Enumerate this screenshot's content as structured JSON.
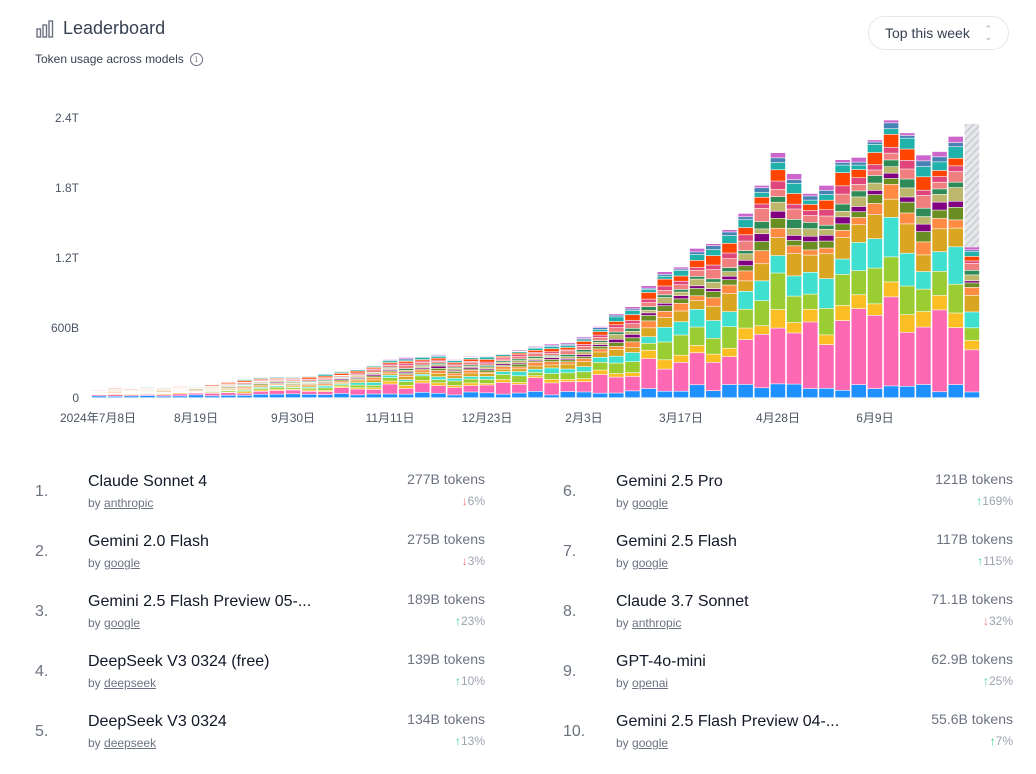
{
  "header": {
    "title": "Leaderboard",
    "subtitle": "Token usage across models",
    "period_select": "Top this week"
  },
  "chart_data": {
    "type": "bar",
    "stacked": true,
    "y_ticks": [
      "0",
      "600B",
      "1.2T",
      "1.8T",
      "2.4T"
    ],
    "y_tick_values": [
      0,
      600,
      1200,
      1800,
      2400
    ],
    "y_unit": "B tokens",
    "ylim": [
      0,
      2400
    ],
    "x_ticks": [
      {
        "label": "2024年7月8日",
        "index": 0
      },
      {
        "label": "8月19日",
        "index": 6
      },
      {
        "label": "9月30日",
        "index": 12
      },
      {
        "label": "11月11日",
        "index": 18
      },
      {
        "label": "12月23日",
        "index": 24
      },
      {
        "label": "2月3日",
        "index": 30
      },
      {
        "label": "3月17日",
        "index": 36
      },
      {
        "label": "4月28日",
        "index": 42
      },
      {
        "label": "6月9日",
        "index": 48
      }
    ],
    "grid": false,
    "legend": "none",
    "weekly_totals": [
      80,
      95,
      90,
      95,
      100,
      105,
      115,
      120,
      140,
      165,
      180,
      185,
      185,
      190,
      210,
      230,
      250,
      280,
      330,
      345,
      355,
      370,
      330,
      355,
      360,
      380,
      410,
      440,
      460,
      470,
      520,
      610,
      720,
      780,
      960,
      1080,
      1120,
      1280,
      1320,
      1440,
      1580,
      1820,
      2100,
      1920,
      1750,
      1820,
      2040,
      2060,
      2210,
      2380,
      2270,
      2080,
      2110,
      2240,
      2350
    ],
    "last_week_partial": true,
    "segment_colors": [
      "#1e90ff",
      "#ff69b4",
      "#fbbf24",
      "#9acd32",
      "#40e0d0",
      "#daa520",
      "#ff8c42",
      "#6b8e23",
      "#800080",
      "#bdb76b",
      "#2e8b57",
      "#f08080",
      "#e0457b",
      "#ff4500",
      "#20b2aa",
      "#4682b4",
      "#cc66cc"
    ]
  },
  "leaderboard": [
    {
      "rank": "1.",
      "name": "Claude Sonnet 4",
      "by": "by",
      "author": "anthropic",
      "tokens": "277B tokens",
      "arrow": "↓",
      "change": "6%",
      "dir": "down"
    },
    {
      "rank": "2.",
      "name": "Gemini 2.0 Flash",
      "by": "by",
      "author": "google",
      "tokens": "275B tokens",
      "arrow": "↓",
      "change": "3%",
      "dir": "down"
    },
    {
      "rank": "3.",
      "name": "Gemini 2.5 Flash Preview 05-...",
      "by": "by",
      "author": "google",
      "tokens": "189B tokens",
      "arrow": "↑",
      "change": "23%",
      "dir": "up"
    },
    {
      "rank": "4.",
      "name": "DeepSeek V3 0324 (free)",
      "by": "by",
      "author": "deepseek",
      "tokens": "139B tokens",
      "arrow": "↑",
      "change": "10%",
      "dir": "up"
    },
    {
      "rank": "5.",
      "name": "DeepSeek V3 0324",
      "by": "by",
      "author": "deepseek",
      "tokens": "134B tokens",
      "arrow": "↑",
      "change": "13%",
      "dir": "up"
    },
    {
      "rank": "6.",
      "name": "Gemini 2.5 Pro",
      "by": "by",
      "author": "google",
      "tokens": "121B tokens",
      "arrow": "↑",
      "change": "169%",
      "dir": "up"
    },
    {
      "rank": "7.",
      "name": "Gemini 2.5 Flash",
      "by": "by",
      "author": "google",
      "tokens": "117B tokens",
      "arrow": "↑",
      "change": "115%",
      "dir": "up"
    },
    {
      "rank": "8.",
      "name": "Claude 3.7 Sonnet",
      "by": "by",
      "author": "anthropic",
      "tokens": "71.1B tokens",
      "arrow": "↓",
      "change": "32%",
      "dir": "down"
    },
    {
      "rank": "9.",
      "name": "GPT-4o-mini",
      "by": "by",
      "author": "openai",
      "tokens": "62.9B tokens",
      "arrow": "↑",
      "change": "25%",
      "dir": "up"
    },
    {
      "rank": "10.",
      "name": "Gemini 2.5 Flash Preview 04-...",
      "by": "by",
      "author": "google",
      "tokens": "55.6B tokens",
      "arrow": "↑",
      "change": "7%",
      "dir": "up"
    }
  ]
}
